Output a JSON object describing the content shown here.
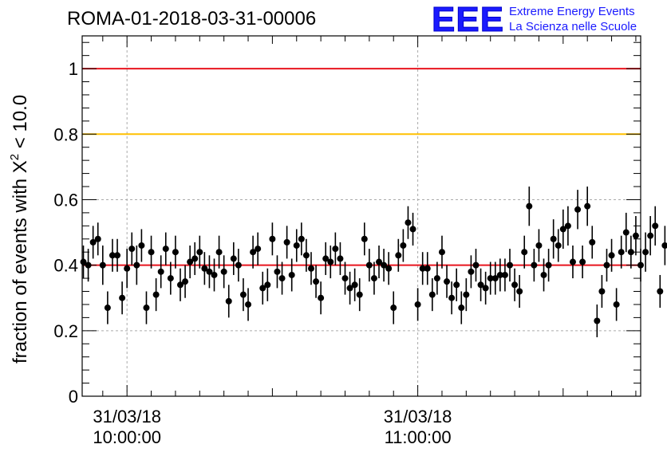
{
  "chart_data": {
    "type": "scatter",
    "title": "ROMA-01-2018-03-31-00006",
    "ylabel_main": "fraction of events with X",
    "ylabel_sup": "2",
    "ylabel_tail": " < 10.0",
    "xlabel": "",
    "ylim": [
      0,
      1.1
    ],
    "yticks": [
      "0",
      "0.2",
      "0.4",
      "0.6",
      "0.8",
      "1"
    ],
    "ytick_values": [
      0,
      0.2,
      0.4,
      0.6,
      0.8,
      1.0
    ],
    "x_tick_labels": [
      {
        "date": "31/03/18",
        "time": "10:00:00"
      },
      {
        "date": "31/03/18",
        "time": "11:00:00"
      }
    ],
    "xlim_minutes": [
      -9.25,
      106.0
    ],
    "x_tick_minutes": [
      0,
      60
    ],
    "grid": true,
    "reference_lines": [
      {
        "value": 1.0,
        "color": "#e8141e"
      },
      {
        "value": 0.8,
        "color": "#ffc000"
      },
      {
        "value": 0.4,
        "color": "#e8141e"
      }
    ],
    "point_interval_minutes": 1,
    "point_start_minute": -9,
    "series": [
      {
        "values": [
          0.41,
          0.4,
          0.47,
          0.48,
          0.4,
          0.27,
          0.43,
          0.43,
          0.3,
          0.39,
          0.45,
          0.4,
          0.46,
          0.27,
          0.44,
          0.31,
          0.38,
          0.45,
          0.36,
          0.44,
          0.34,
          0.35,
          0.41,
          0.42,
          0.44,
          0.39,
          0.38,
          0.37,
          0.44,
          0.38,
          0.29,
          0.42,
          0.4,
          0.31,
          0.28,
          0.44,
          0.45,
          0.33,
          0.34,
          0.48,
          0.38,
          0.36,
          0.47,
          0.37,
          0.46,
          0.48,
          0.43,
          0.39,
          0.35,
          0.3,
          0.42,
          0.41,
          0.45,
          0.42,
          0.36,
          0.33,
          0.34,
          0.31,
          0.48,
          0.4,
          0.36,
          0.41,
          0.4,
          0.39,
          0.27,
          0.43,
          0.46,
          0.53,
          0.51,
          0.28,
          0.39,
          0.39,
          0.31,
          0.36,
          0.44,
          0.35,
          0.3,
          0.34,
          0.27,
          0.31,
          0.38,
          0.4,
          0.34,
          0.33,
          0.36,
          0.36,
          0.37,
          0.37,
          0.4,
          0.34,
          0.32,
          0.44,
          0.58,
          0.4,
          0.46,
          0.37,
          0.4,
          0.48,
          0.46,
          0.51,
          0.52,
          0.41,
          0.57,
          0.41,
          0.58,
          0.47,
          0.23,
          0.32,
          0.4,
          0.43,
          0.28,
          0.44,
          0.5,
          0.44,
          0.49,
          0.4,
          0.44,
          0.49,
          0.52,
          0.32,
          0.46
        ],
        "errors": [
          0.05,
          0.05,
          0.05,
          0.05,
          0.06,
          0.05,
          0.05,
          0.05,
          0.05,
          0.06,
          0.05,
          0.06,
          0.05,
          0.05,
          0.05,
          0.05,
          0.05,
          0.05,
          0.05,
          0.05,
          0.05,
          0.05,
          0.05,
          0.05,
          0.05,
          0.05,
          0.05,
          0.05,
          0.05,
          0.05,
          0.05,
          0.05,
          0.05,
          0.05,
          0.05,
          0.05,
          0.05,
          0.05,
          0.05,
          0.05,
          0.05,
          0.05,
          0.05,
          0.05,
          0.05,
          0.05,
          0.05,
          0.05,
          0.05,
          0.05,
          0.05,
          0.05,
          0.05,
          0.05,
          0.05,
          0.05,
          0.05,
          0.05,
          0.05,
          0.05,
          0.05,
          0.05,
          0.05,
          0.05,
          0.05,
          0.05,
          0.05,
          0.05,
          0.05,
          0.05,
          0.05,
          0.05,
          0.05,
          0.05,
          0.05,
          0.05,
          0.05,
          0.05,
          0.05,
          0.05,
          0.05,
          0.05,
          0.05,
          0.05,
          0.05,
          0.05,
          0.05,
          0.05,
          0.05,
          0.05,
          0.05,
          0.05,
          0.06,
          0.05,
          0.05,
          0.05,
          0.05,
          0.06,
          0.05,
          0.06,
          0.06,
          0.05,
          0.06,
          0.05,
          0.06,
          0.05,
          0.05,
          0.05,
          0.05,
          0.05,
          0.05,
          0.05,
          0.06,
          0.05,
          0.06,
          0.05,
          0.06,
          0.06,
          0.06,
          0.05,
          0.06
        ]
      }
    ]
  },
  "logo": {
    "mark": "EEE",
    "line1": "Extreme Energy Events",
    "line2": "La Scienza nelle Scuole",
    "color": "#1a1aff"
  }
}
